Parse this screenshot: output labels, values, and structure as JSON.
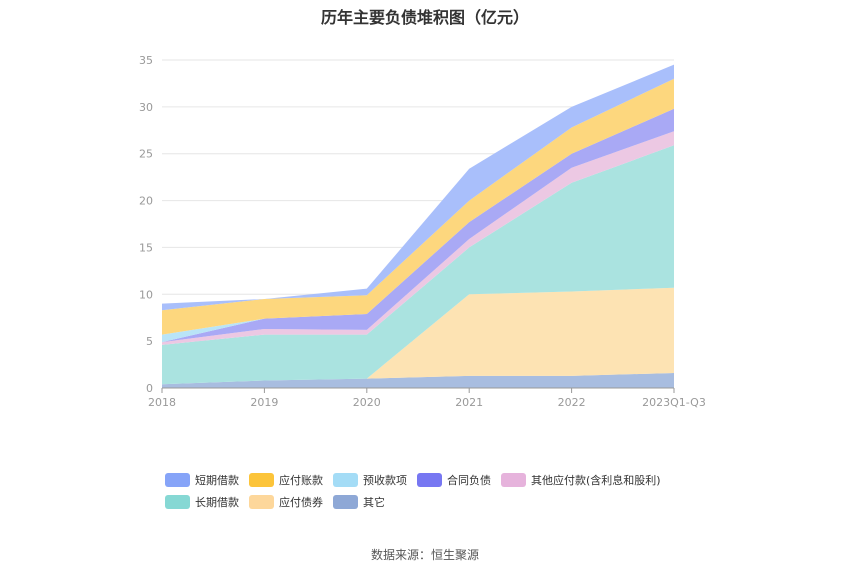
{
  "chart_data": {
    "type": "area",
    "stacked": true,
    "title": "历年主要负债堆积图（亿元）",
    "categories": [
      "2018",
      "2019",
      "2020",
      "2021",
      "2022",
      "2023Q1-Q3"
    ],
    "ylim": [
      0,
      35
    ],
    "yticks": [
      0,
      5,
      10,
      15,
      20,
      25,
      30,
      35
    ],
    "grid": true,
    "legend_position": "bottom",
    "series": [
      {
        "name": "其它",
        "color": "#a8bde0",
        "values": [
          0.4,
          0.8,
          1.0,
          1.3,
          1.3,
          1.6
        ]
      },
      {
        "name": "应付债券",
        "color": "#fde3b3",
        "values": [
          0.0,
          0.0,
          0.0,
          8.7,
          9.0,
          9.1
        ]
      },
      {
        "name": "长期借款",
        "color": "#aae3e0",
        "values": [
          4.2,
          4.9,
          4.7,
          5.0,
          11.6,
          15.2
        ]
      },
      {
        "name": "其他应付款(含利息和股利)",
        "color": "#ecc8e3",
        "values": [
          0.3,
          0.6,
          0.5,
          0.9,
          1.6,
          1.5
        ]
      },
      {
        "name": "合同负债",
        "color": "#a9a9f5",
        "values": [
          0.0,
          1.1,
          1.7,
          1.8,
          1.5,
          2.4
        ]
      },
      {
        "name": "预收款项",
        "color": "#b9e4f7",
        "values": [
          0.8,
          0.0,
          0.0,
          0.0,
          0.0,
          0.0
        ]
      },
      {
        "name": "应付账款",
        "color": "#fdd77e",
        "values": [
          2.6,
          2.1,
          2.0,
          2.3,
          2.8,
          3.2
        ]
      },
      {
        "name": "短期借款",
        "color": "#a9bffb",
        "values": [
          0.7,
          0.0,
          0.7,
          3.4,
          2.2,
          1.5
        ]
      }
    ],
    "legend_rows": [
      [
        {
          "name": "短期借款",
          "color": "#86a4f8"
        },
        {
          "name": "应付账款",
          "color": "#fcc43a"
        },
        {
          "name": "预收款项",
          "color": "#a4dcf6"
        },
        {
          "name": "合同负债",
          "color": "#7777f2"
        },
        {
          "name": "其他应付款(含利息和股利)",
          "color": "#e6b3dc"
        }
      ],
      [
        {
          "name": "长期借款",
          "color": "#86d8d4"
        },
        {
          "name": "应付债券",
          "color": "#fdd79b"
        },
        {
          "name": "其它",
          "color": "#8ea8d6"
        }
      ]
    ]
  },
  "source_text": "数据来源：恒生聚源"
}
